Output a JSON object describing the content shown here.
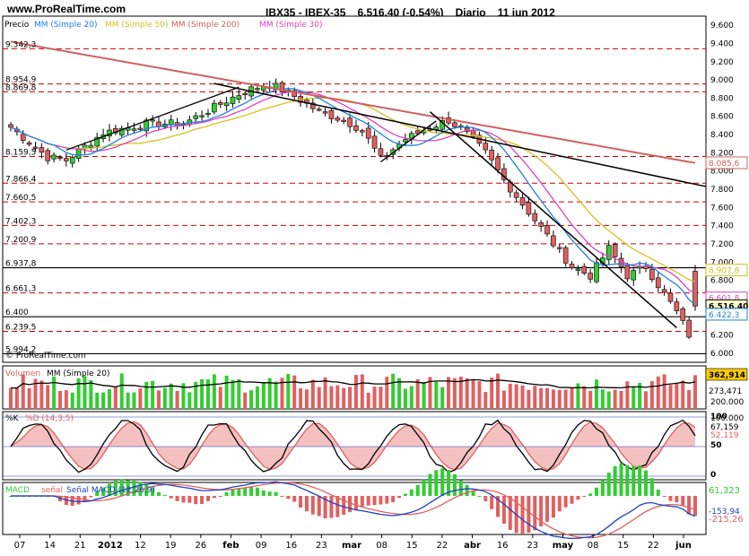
{
  "header": {
    "site": "www.ProRealTime.com",
    "symbol": "IBX35 - IBEX-35",
    "quote": "6.516,40 (-0,54%)",
    "period": "Diario",
    "date": "11 jun 2012"
  },
  "colors": {
    "up": "#33cc33",
    "down": "#e06060",
    "sma20": "#2080e0",
    "sma50": "#d4c020",
    "sma200": "#d06060",
    "sma30": "#e040c0",
    "resistance": "#cc0000",
    "trend": "#000000",
    "volume_sma": "#000000",
    "stoch_k": "#000000",
    "stoch_d": "#e06060",
    "macd_line": "#2040c0",
    "macd_signal": "#e06060",
    "macd_hist": "#33cc33"
  },
  "chart_data": [
    {
      "type": "candlestick",
      "panel": "price",
      "legend": [
        "Precio",
        "MM (Simple 20)",
        "MM (Simple 50)",
        "MM (Simple 200)",
        "MM (Simple 30)"
      ],
      "ylim": [
        5900,
        9700
      ],
      "y_ticks": [
        "9.600",
        "9.400",
        "9.200",
        "9.000",
        "8.800",
        "8.600",
        "8.400",
        "8.200",
        "8.000",
        "7.800",
        "7.600",
        "7.400",
        "7.200",
        "7.000",
        "6.800",
        "6.600",
        "6.400",
        "6.200",
        "6.000"
      ],
      "level_labels": [
        "9.342,3",
        "8.954,9",
        "8.869,8",
        "8.159,5",
        "7.866,4",
        "7.660,5",
        "7.402,3",
        "7.200,9",
        "6.937,8",
        "6.661,3",
        "6.400",
        "6.239,5",
        "5.994,2"
      ],
      "last_values": {
        "sma50": "6.907,8",
        "sma200": "8.085,6",
        "sma30": "6.601,8",
        "close": "6.516,40",
        "sma20": "6.422,3"
      },
      "x_labels": [
        "07",
        "14",
        "21",
        "2012",
        "12",
        "19",
        "26",
        "feb",
        "09",
        "16",
        "23",
        "mar",
        "08",
        "15",
        "22",
        "abr",
        "16",
        "23",
        "may",
        "08",
        "15",
        "22",
        "jun"
      ],
      "copyright": "© ProRealTime.com"
    },
    {
      "type": "bar",
      "panel": "volume",
      "legend": [
        "Volumen",
        "MM (Simple 20)"
      ],
      "y_ticks": [
        "200.000",
        "100.000"
      ],
      "last_values": {
        "volume": "362,914",
        "sma20": "273,471"
      }
    },
    {
      "type": "line",
      "panel": "stochastic",
      "legend": [
        "%K",
        "%D (14,3,5)"
      ],
      "ylim": [
        0,
        100
      ],
      "y_ticks": [
        "100",
        "50",
        "0"
      ],
      "last_values": {
        "k": "67,159",
        "d": "52,119"
      }
    },
    {
      "type": "line",
      "panel": "macd",
      "legend": [
        "MACD",
        "señal",
        "Señal MACD (12,26,9)"
      ],
      "last_values": {
        "hist": "61,323",
        "macd": "-153,94",
        "signal": "-215,26"
      }
    }
  ]
}
